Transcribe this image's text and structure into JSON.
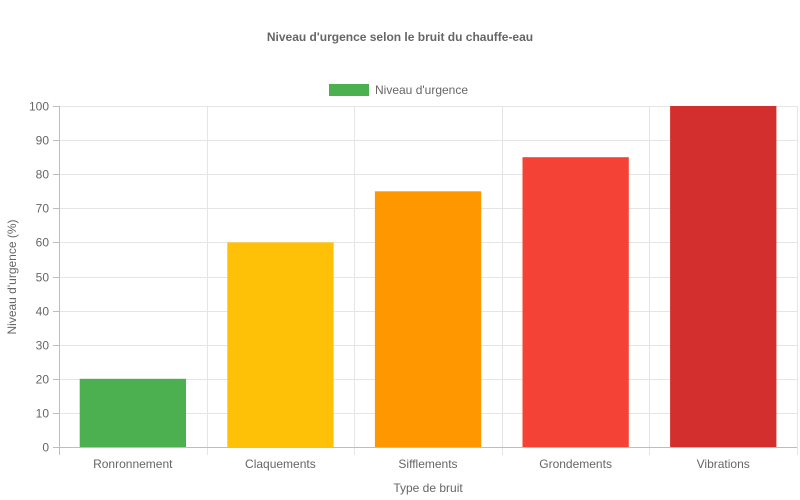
{
  "chart_data": {
    "type": "bar",
    "title": "Niveau d'urgence selon le bruit du chauffe-eau",
    "xlabel": "Type de bruit",
    "ylabel": "Niveau d'urgence (%)",
    "categories": [
      "Ronronnement",
      "Claquements",
      "Sifflements",
      "Grondements",
      "Vibrations"
    ],
    "series": [
      {
        "name": "Niveau d'urgence",
        "values": [
          20,
          60,
          75,
          85,
          100
        ],
        "colors": [
          "#4caf50",
          "#ffc107",
          "#ff9800",
          "#f44336",
          "#d32f2f"
        ]
      }
    ],
    "ylim": [
      0,
      100
    ],
    "yticks": [
      0,
      10,
      20,
      30,
      40,
      50,
      60,
      70,
      80,
      90,
      100
    ],
    "grid": true,
    "legend": "top"
  }
}
